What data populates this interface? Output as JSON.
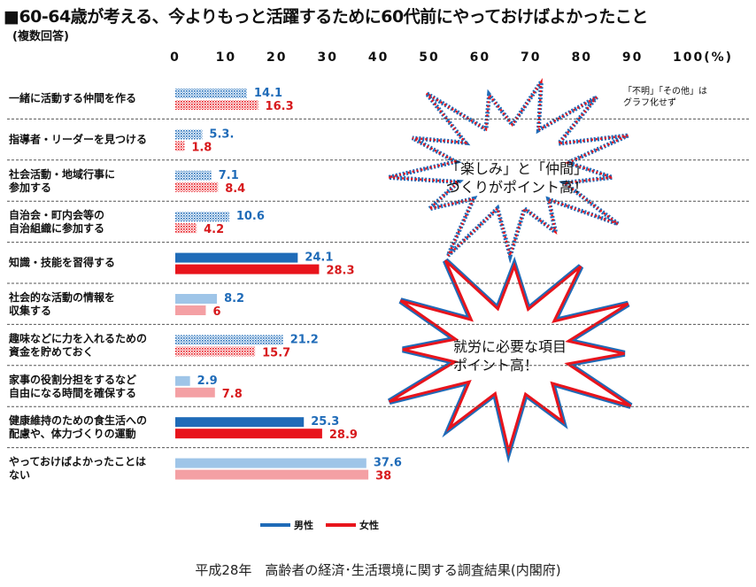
{
  "title": "■60-64歳が考える、今よりもっと活躍するために60代前にやっておけばよかったこと",
  "subtitle": "(複数回答)",
  "note_lines": [
    "「不明」「その他」は",
    "グラフ化せず"
  ],
  "callouts": [
    {
      "lines": [
        "「楽しみ」と「仲間」",
        "づくりがポイント高！"
      ]
    },
    {
      "lines": [
        "就労に必要な項目",
        "ポイント高！"
      ]
    }
  ],
  "source": "平成28年　高齢者の経済･生活環境に関する調査結果(内閣府)",
  "colors": {
    "male_solid": "#1f6bb8",
    "male_light": "#9fc5e8",
    "female_solid": "#e8141c",
    "female_light": "#f4a0a4",
    "male_label": "#1f6bb8",
    "female_label": "#d7191c"
  },
  "chart_data": {
    "type": "bar",
    "orientation": "horizontal",
    "xlim": [
      0,
      100
    ],
    "tick_labels": [
      "0",
      "10",
      "20",
      "30",
      "40",
      "50",
      "60",
      "70",
      "80",
      "90",
      "100(%)"
    ],
    "categories": [
      [
        "一緒に活動する仲間を作る"
      ],
      [
        "指導者・リーダーを見つける"
      ],
      [
        "社会活動・地域行事に",
        "参加する"
      ],
      [
        "自治会・町内会等の",
        "自治組織に参加する"
      ],
      [
        "知識・技能を習得する"
      ],
      [
        "社会的な活動の情報を",
        "収集する"
      ],
      [
        "趣味などに力を入れるための",
        "資金を貯めておく"
      ],
      [
        "家事の役割分担をするなど",
        "自由になる時間を確保する"
      ],
      [
        "健康維持のための食生活への",
        "配慮や、体力づくりの運動"
      ],
      [
        "やっておけばよかったことは",
        "ない"
      ]
    ],
    "series": [
      {
        "name": "男性",
        "values": [
          14.1,
          5.3,
          7.1,
          10.6,
          24.1,
          8.2,
          21.2,
          2.9,
          25.3,
          37.6
        ],
        "labels": [
          "14.1",
          "5.3.",
          "7.1",
          "10.6",
          "24.1",
          "8.2",
          "21.2",
          "2.9",
          "25.3",
          "37.6"
        ]
      },
      {
        "name": "女性",
        "values": [
          16.3,
          1.8,
          8.4,
          4.2,
          28.3,
          6,
          15.7,
          7.8,
          28.9,
          38
        ],
        "labels": [
          "16.3",
          "1.8",
          "8.4",
          "4.2",
          "28.3",
          "6",
          "15.7",
          "7.8",
          "28.9",
          "38"
        ]
      }
    ],
    "bar_style": [
      "dotted",
      "dotted",
      "dotted",
      "dotted",
      "solid",
      "light",
      "dotted",
      "light",
      "solid",
      "light"
    ],
    "legend": "bottom-center",
    "grid": false
  }
}
